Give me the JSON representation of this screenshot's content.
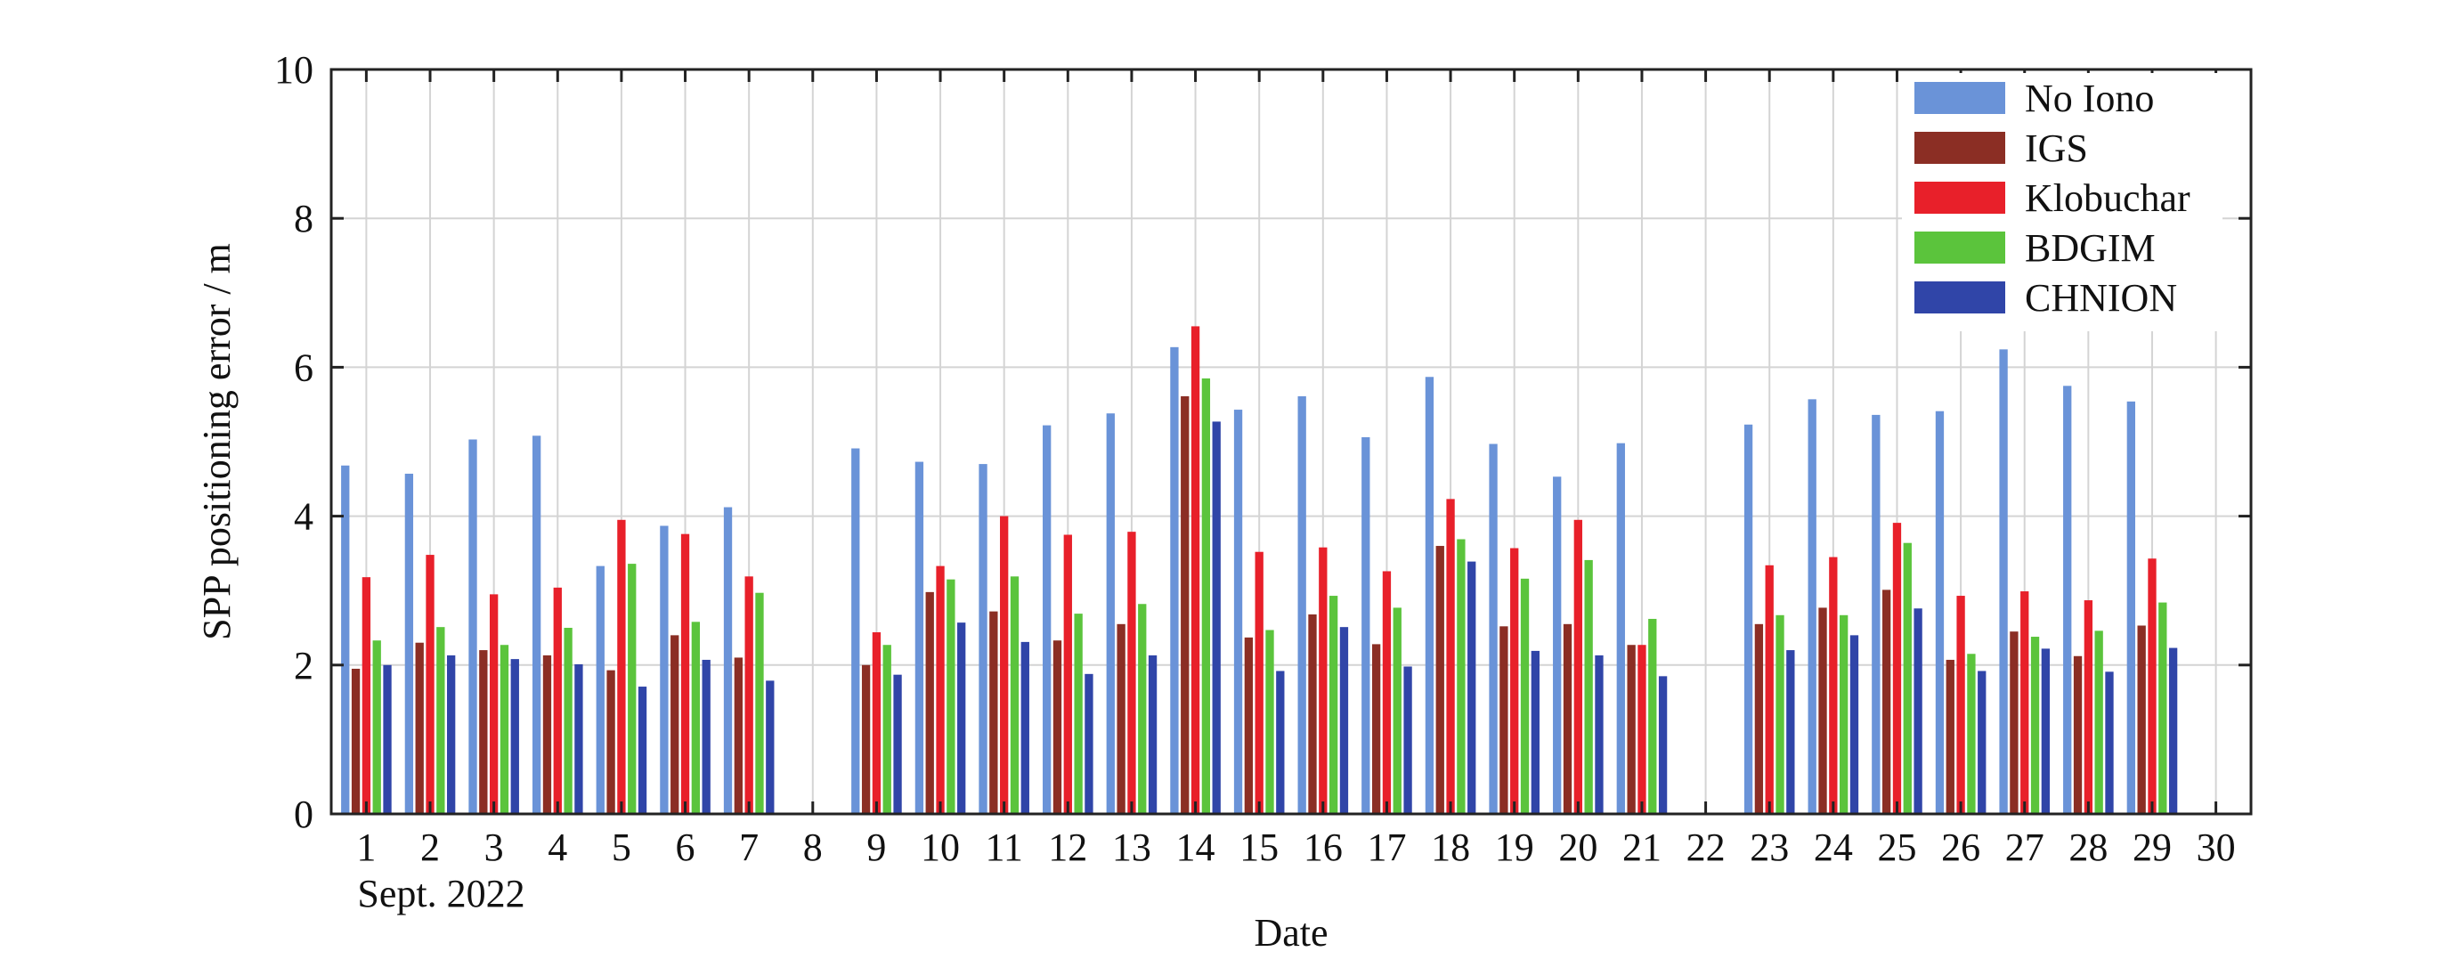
{
  "chart_data": {
    "type": "bar",
    "title": "",
    "xlabel": "Date",
    "xlabel_sub": "Sept. 2022",
    "ylabel": "SPP positioning error / m",
    "ylim": [
      0,
      10
    ],
    "yticks": [
      "0",
      "2",
      "4",
      "6",
      "8",
      "10"
    ],
    "grid": true,
    "legend_position": "top-right",
    "categories": [
      "1",
      "2",
      "3",
      "4",
      "5",
      "6",
      "7",
      "8",
      "9",
      "10",
      "11",
      "12",
      "13",
      "14",
      "15",
      "16",
      "17",
      "18",
      "19",
      "20",
      "21",
      "22",
      "23",
      "24",
      "25",
      "26",
      "27",
      "28",
      "29",
      "30"
    ],
    "series": [
      {
        "name": "No Iono",
        "color": "#6a93d8",
        "values": [
          4.68,
          4.57,
          5.03,
          5.08,
          3.33,
          3.87,
          4.12,
          null,
          4.91,
          4.73,
          4.7,
          5.22,
          5.38,
          6.27,
          5.43,
          5.61,
          5.06,
          5.87,
          4.97,
          4.53,
          4.98,
          null,
          5.23,
          5.57,
          5.36,
          5.41,
          6.24,
          5.75,
          5.54,
          null
        ]
      },
      {
        "name": "IGS",
        "color": "#8b2e24",
        "values": [
          1.95,
          2.3,
          2.2,
          2.13,
          1.93,
          2.4,
          2.1,
          null,
          2.0,
          2.98,
          2.72,
          2.33,
          2.55,
          5.61,
          2.37,
          2.68,
          2.28,
          3.6,
          2.52,
          2.55,
          2.27,
          null,
          2.55,
          2.77,
          3.01,
          2.07,
          2.45,
          2.12,
          2.53,
          null
        ]
      },
      {
        "name": "Klobuchar",
        "color": "#e8202a",
        "values": [
          3.18,
          3.48,
          2.95,
          3.04,
          3.95,
          3.76,
          3.19,
          null,
          2.44,
          3.33,
          4.0,
          3.75,
          3.79,
          6.55,
          3.52,
          3.58,
          3.26,
          4.23,
          3.57,
          3.95,
          2.27,
          null,
          3.34,
          3.45,
          3.91,
          2.93,
          2.99,
          2.87,
          3.43,
          null
        ]
      },
      {
        "name": "BDGIM",
        "color": "#5bc43c",
        "values": [
          2.33,
          2.51,
          2.27,
          2.5,
          3.36,
          2.58,
          2.97,
          null,
          2.27,
          3.15,
          3.19,
          2.69,
          2.82,
          5.85,
          2.47,
          2.93,
          2.77,
          3.69,
          3.16,
          3.41,
          2.62,
          null,
          2.67,
          2.67,
          3.64,
          2.15,
          2.38,
          2.46,
          2.84,
          null
        ]
      },
      {
        "name": "CHNION",
        "color": "#3045a8",
        "values": [
          2.0,
          2.13,
          2.08,
          2.01,
          1.71,
          2.07,
          1.79,
          null,
          1.87,
          2.57,
          2.31,
          1.88,
          2.13,
          5.27,
          1.92,
          2.51,
          1.98,
          3.39,
          2.19,
          2.13,
          1.85,
          null,
          2.2,
          2.4,
          2.76,
          1.92,
          2.22,
          1.91,
          2.23,
          null
        ]
      }
    ]
  }
}
